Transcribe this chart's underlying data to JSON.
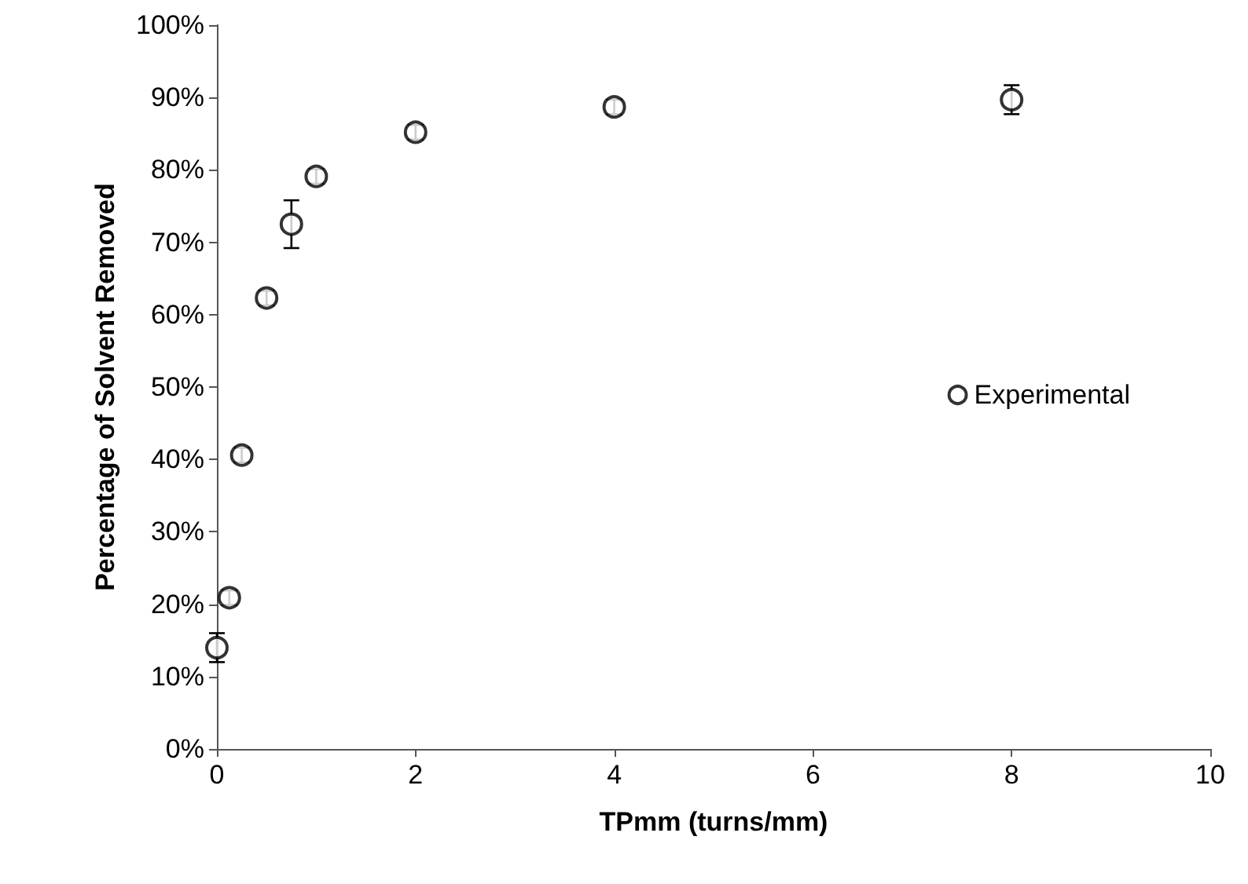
{
  "chart_data": {
    "type": "scatter",
    "xlabel": "TPmm (turns/mm)",
    "ylabel": "Percentage of Solvent Removed",
    "x": [
      0,
      0.125,
      0.25,
      0.5,
      0.75,
      1,
      2,
      4,
      8
    ],
    "series": [
      {
        "name": "Experimental",
        "color": "#000000",
        "values": [
          14,
          20.9,
          40.6,
          62.3,
          72.5,
          79.1,
          85.2,
          88.7,
          89.7
        ],
        "errors": [
          2,
          1,
          1,
          1,
          3.3,
          1,
          1,
          1,
          2
        ]
      }
    ],
    "xlim": [
      0,
      10
    ],
    "xticks": [
      0,
      2,
      4,
      6,
      8,
      10
    ],
    "ylim": [
      0,
      100
    ],
    "yticks": [
      {
        "value": 0,
        "label": "0%"
      },
      {
        "value": 10,
        "label": "10%"
      },
      {
        "value": 20,
        "label": "20%"
      },
      {
        "value": 30,
        "label": "30%"
      },
      {
        "value": 40,
        "label": "40%"
      },
      {
        "value": 50,
        "label": "50%"
      },
      {
        "value": 60,
        "label": "60%"
      },
      {
        "value": 70,
        "label": "70%"
      },
      {
        "value": 80,
        "label": "80%"
      },
      {
        "value": 90,
        "label": "90%"
      },
      {
        "value": 100,
        "label": "100%"
      }
    ],
    "grid": false,
    "legend": "right",
    "marker": "circle"
  }
}
